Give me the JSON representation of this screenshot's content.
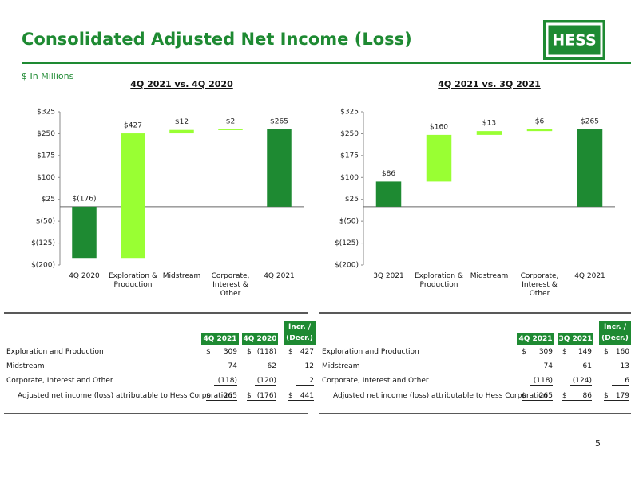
{
  "header": {
    "title": "Consolidated Adjusted Net Income (Loss)",
    "logo": "HESS",
    "units": "$ In Millions"
  },
  "chart_data": [
    {
      "type": "waterfall",
      "title": "4Q 2021 vs. 4Q 2020",
      "categories": [
        "4Q 2020",
        "Exploration & Production",
        "Midstream",
        "Corporate, Interest & Other",
        "4Q 2021"
      ],
      "values": [
        -176,
        427,
        12,
        2,
        265
      ],
      "value_labels": [
        "$(176)",
        "$427",
        "$12",
        "$2",
        "$265"
      ],
      "colors": [
        "#1e8a32",
        "#99ff33",
        "#99ff33",
        "#99ff33",
        "#1e8a32"
      ],
      "ylim": [
        -200,
        325
      ],
      "yticks": [
        {
          "value": 325,
          "label": "$325"
        },
        {
          "value": 250,
          "label": "$250"
        },
        {
          "value": 175,
          "label": "$175"
        },
        {
          "value": 100,
          "label": "$100"
        },
        {
          "value": 25,
          "label": "$25"
        },
        {
          "value": -50,
          "label": "$(50)"
        },
        {
          "value": -125,
          "label": "$(125)"
        },
        {
          "value": -200,
          "label": "$(200)"
        }
      ]
    },
    {
      "type": "waterfall",
      "title": "4Q 2021 vs. 3Q 2021",
      "categories": [
        "3Q 2021",
        "Exploration & Production",
        "Midstream",
        "Corporate, Interest & Other",
        "4Q 2021"
      ],
      "values": [
        86,
        160,
        13,
        6,
        265
      ],
      "value_labels": [
        "$86",
        "$160",
        "$13",
        "$6",
        "$265"
      ],
      "colors": [
        "#1e8a32",
        "#99ff33",
        "#99ff33",
        "#99ff33",
        "#1e8a32"
      ],
      "ylim": [
        -200,
        325
      ],
      "yticks": [
        {
          "value": 325,
          "label": "$325"
        },
        {
          "value": 250,
          "label": "$250"
        },
        {
          "value": 175,
          "label": "$175"
        },
        {
          "value": 100,
          "label": "$100"
        },
        {
          "value": 25,
          "label": "$25"
        },
        {
          "value": -50,
          "label": "$(50)"
        },
        {
          "value": -125,
          "label": "$(125)"
        },
        {
          "value": -200,
          "label": "$(200)"
        }
      ]
    }
  ],
  "tables": [
    {
      "columns": [
        "4Q 2021",
        "4Q 2020",
        "Incr. / (Decr.)"
      ],
      "rows": [
        {
          "label": "Exploration and Production",
          "cells": [
            {
              "currency": "$",
              "amount": "309"
            },
            {
              "currency": "$",
              "amount": "(118)"
            },
            {
              "currency": "$",
              "amount": "427"
            }
          ]
        },
        {
          "label": "Midstream",
          "cells": [
            {
              "amount": "74"
            },
            {
              "amount": "62"
            },
            {
              "amount": "12"
            }
          ]
        },
        {
          "label": "Corporate, Interest and Other",
          "cells": [
            {
              "amount": "(118)"
            },
            {
              "amount": "(120)"
            },
            {
              "amount": "2"
            }
          ]
        },
        {
          "label": "Adjusted net income (loss) attributable to Hess Corporation",
          "cells": [
            {
              "currency": "$",
              "amount": "265"
            },
            {
              "currency": "$",
              "amount": "(176)"
            },
            {
              "currency": "$",
              "amount": "441"
            }
          ]
        }
      ]
    },
    {
      "columns": [
        "4Q 2021",
        "3Q 2021",
        "Incr. / (Decr.)"
      ],
      "rows": [
        {
          "label": "Exploration and Production",
          "cells": [
            {
              "currency": "$",
              "amount": "309"
            },
            {
              "currency": "$",
              "amount": "149"
            },
            {
              "currency": "$",
              "amount": "160"
            }
          ]
        },
        {
          "label": "Midstream",
          "cells": [
            {
              "amount": "74"
            },
            {
              "amount": "61"
            },
            {
              "amount": "13"
            }
          ]
        },
        {
          "label": "Corporate, Interest and Other",
          "cells": [
            {
              "amount": "(118)"
            },
            {
              "amount": "(124)"
            },
            {
              "amount": "6"
            }
          ]
        },
        {
          "label": "Adjusted net income (loss) attributable to Hess Corporation",
          "cells": [
            {
              "currency": "$",
              "amount": "265"
            },
            {
              "currency": "$",
              "amount": "86"
            },
            {
              "currency": "$",
              "amount": "179"
            }
          ]
        }
      ]
    }
  ],
  "footer": {
    "page": "5"
  }
}
